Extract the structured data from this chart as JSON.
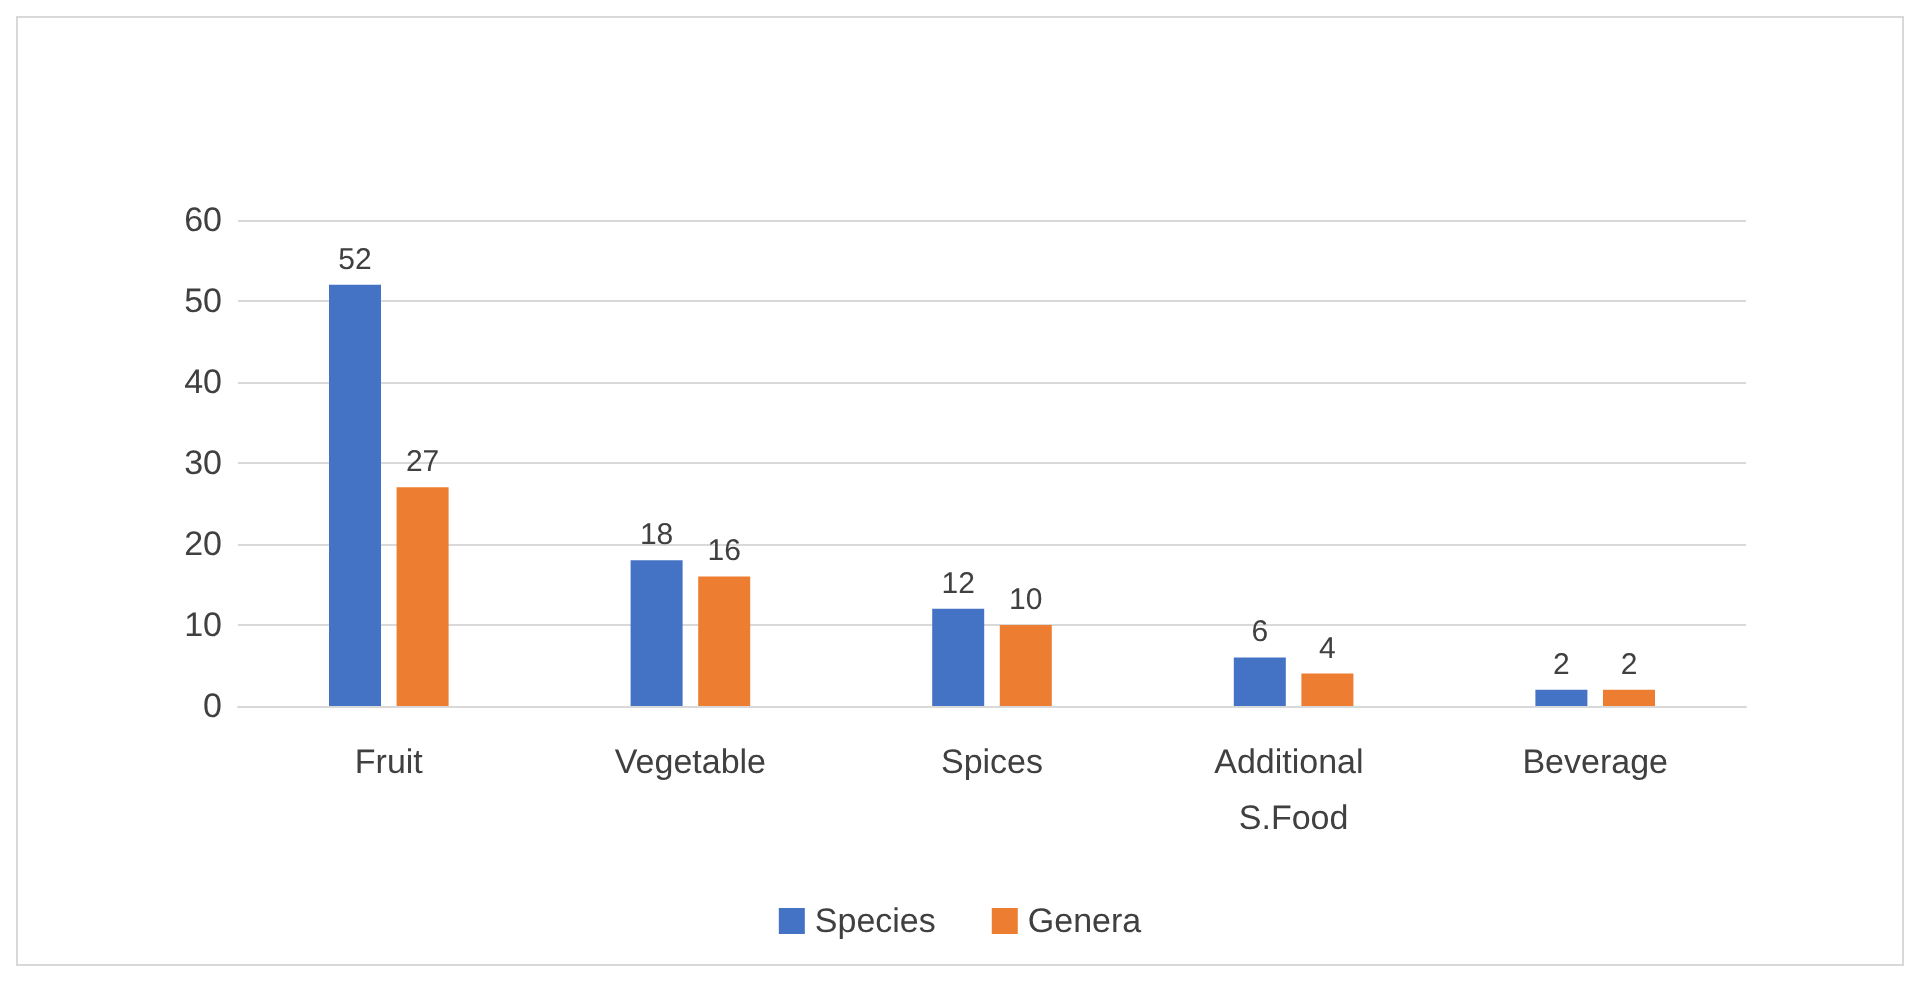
{
  "chart_data": {
    "type": "bar",
    "categories": [
      "Fruit",
      "Vegetable",
      "Spices",
      "Additional S.Food",
      "Beverage"
    ],
    "series": [
      {
        "name": "Species",
        "color": "#4472c4",
        "values": [
          52,
          18,
          12,
          6,
          2
        ]
      },
      {
        "name": "Genera",
        "color": "#ed7d31",
        "values": [
          27,
          16,
          10,
          4,
          2
        ]
      }
    ],
    "ylim": [
      0,
      60
    ],
    "yticks": [
      0,
      10,
      20,
      30,
      40,
      50,
      60
    ],
    "grid": "y",
    "legend": "bottom",
    "data_labels": true
  }
}
